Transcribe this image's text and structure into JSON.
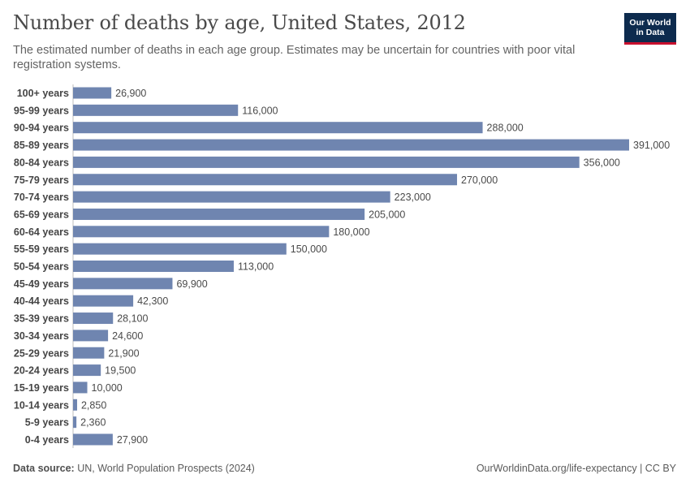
{
  "header": {
    "title": "Number of deaths by age, United States, 2012",
    "subtitle": "The estimated number of deaths in each age group. Estimates may be uncertain for countries with poor vital registration systems."
  },
  "logo": {
    "line1": "Our World",
    "line2": "in Data"
  },
  "footer": {
    "source_label": "Data source:",
    "source_text": "UN, World Population Prospects (2024)",
    "link_text": "OurWorldinData.org/life-expectancy | CC BY"
  },
  "colors": {
    "bar": "#6f85b0",
    "brand_navy": "#0d2b4e",
    "brand_red": "#c8102e"
  },
  "chart_data": {
    "type": "bar",
    "orientation": "horizontal",
    "title": "Number of deaths by age, United States, 2012",
    "categories": [
      "100+ years",
      "95-99 years",
      "90-94 years",
      "85-89 years",
      "80-84 years",
      "75-79 years",
      "70-74 years",
      "65-69 years",
      "60-64 years",
      "55-59 years",
      "50-54 years",
      "45-49 years",
      "40-44 years",
      "35-39 years",
      "30-34 years",
      "25-29 years",
      "20-24 years",
      "15-19 years",
      "10-14 years",
      "5-9 years",
      "0-4 years"
    ],
    "values": [
      26900,
      116000,
      288000,
      391000,
      356000,
      270000,
      223000,
      205000,
      180000,
      150000,
      113000,
      69900,
      42300,
      28100,
      24600,
      21900,
      19500,
      10000,
      2850,
      2360,
      27900
    ],
    "value_labels": [
      "26,900",
      "116,000",
      "288,000",
      "391,000",
      "356,000",
      "270,000",
      "223,000",
      "205,000",
      "180,000",
      "150,000",
      "113,000",
      "69,900",
      "42,300",
      "28,100",
      "24,600",
      "21,900",
      "19,500",
      "10,000",
      "2,850",
      "2,360",
      "27,900"
    ],
    "xlim": [
      0,
      391000
    ],
    "grid": false,
    "legend": "none"
  }
}
